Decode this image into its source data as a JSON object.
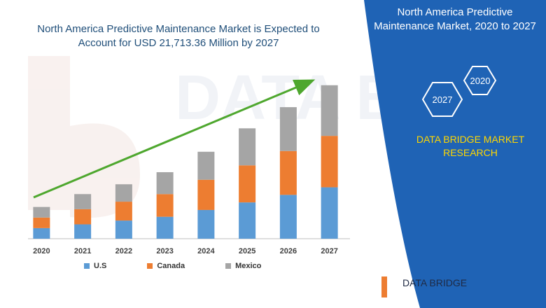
{
  "chart_data": {
    "type": "bar",
    "stacked": true,
    "title": "North America Predictive Maintenance Market is Expected to Account for USD 21,713.36 Million by 2027",
    "categories": [
      "2020",
      "2021",
      "2022",
      "2023",
      "2024",
      "2025",
      "2026",
      "2027"
    ],
    "series": [
      {
        "name": "U.S",
        "color": "#5b9bd5",
        "values": [
          14,
          19,
          24,
          29,
          38,
          48,
          58,
          68
        ]
      },
      {
        "name": "Canada",
        "color": "#ed7d31",
        "values": [
          14,
          20,
          25,
          30,
          40,
          49,
          58,
          68
        ]
      },
      {
        "name": "Mexico",
        "color": "#a5a5a5",
        "values": [
          14,
          20,
          23,
          29,
          37,
          49,
          58,
          67
        ]
      }
    ],
    "ylim": [
      0,
      250
    ],
    "grid": false,
    "legend": "bottom",
    "trend_arrow": true,
    "trend_arrow_color": "#4ea72e"
  },
  "sidebar": {
    "title_line1": "North America Predictive",
    "title_line2": "Maintenance Market, 2020 to 2027",
    "hex_left": "2027",
    "hex_right": "2020",
    "company_line1": "DATA BRIDGE MARKET",
    "company_line2": "RESEARCH"
  },
  "title_line1": "North America Predictive Maintenance Market is Expected to",
  "title_line2": "Account for USD 21,713.36 Million by 2027",
  "logo_text": "DATA BRIDGE",
  "colors": {
    "sidebar_blue": "#1f63b5",
    "accent_yellow": "#ffd700",
    "watermark": "#e9eef5"
  }
}
